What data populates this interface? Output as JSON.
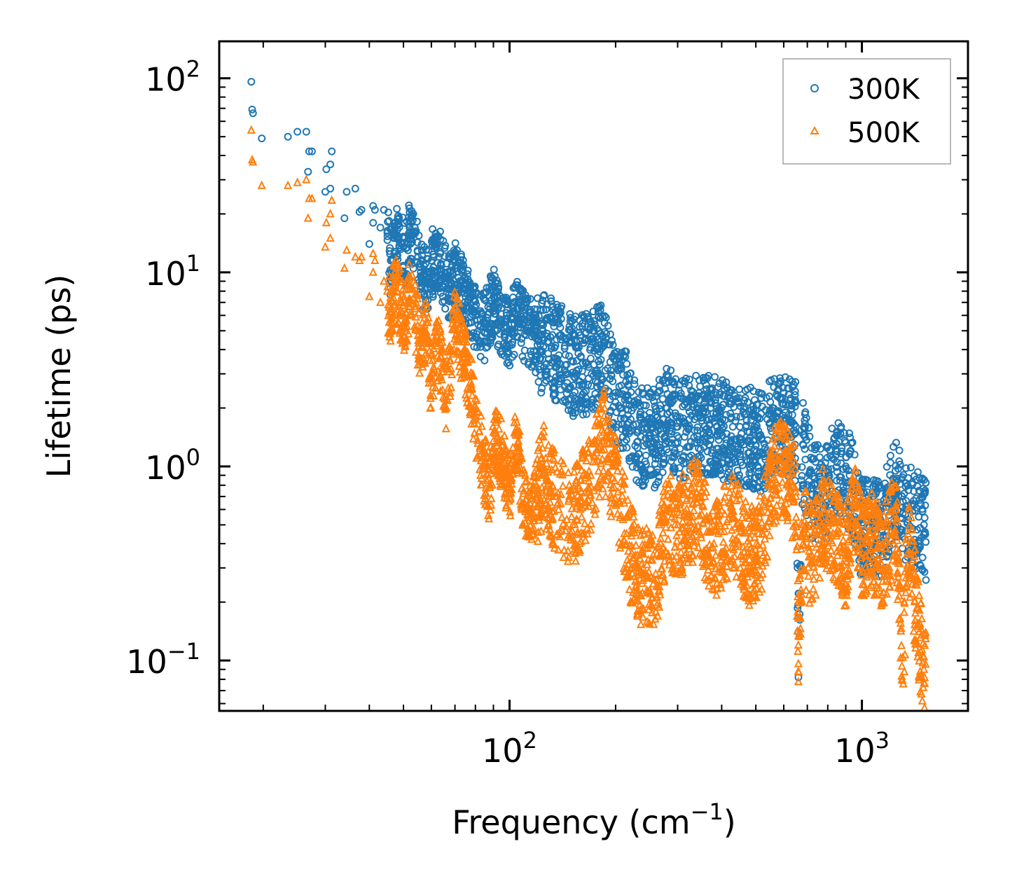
{
  "chart_data": {
    "type": "scatter",
    "title": "",
    "xlabel": "Frequency (cm",
    "xlabel_sup": "−1",
    "xlabel_close": ")",
    "ylabel": "Lifetime (ps)",
    "xscale": "log",
    "yscale": "log",
    "xlim": [
      15,
      2000
    ],
    "ylim": [
      0.055,
      155
    ],
    "x_ticks": [
      {
        "value": 100,
        "base": "10",
        "exp": "2"
      },
      {
        "value": 1000,
        "base": "10",
        "exp": "3"
      }
    ],
    "y_ticks": [
      {
        "value": 0.1,
        "base": "10",
        "exp": "−1"
      },
      {
        "value": 1,
        "base": "10",
        "exp": "0"
      },
      {
        "value": 10,
        "base": "10",
        "exp": "1"
      },
      {
        "value": 100,
        "base": "10",
        "exp": "2"
      }
    ],
    "legend_position": "top-right",
    "series": [
      {
        "name": "300K",
        "marker": "circle",
        "color": "#1f77b4",
        "points": [
          [
            18.5,
            96
          ],
          [
            18.6,
            69
          ],
          [
            18.7,
            66
          ],
          [
            19.8,
            49
          ],
          [
            23.5,
            50
          ],
          [
            25,
            53
          ],
          [
            26.5,
            53
          ],
          [
            27,
            42
          ],
          [
            27.5,
            42
          ],
          [
            26.8,
            33
          ],
          [
            30,
            26
          ],
          [
            30.2,
            34
          ],
          [
            31,
            36
          ],
          [
            31.3,
            42
          ],
          [
            31,
            27
          ],
          [
            34,
            19
          ],
          [
            34.5,
            26
          ],
          [
            36.5,
            27
          ],
          [
            37.5,
            20.5
          ],
          [
            38,
            21
          ],
          [
            40,
            14
          ],
          [
            41,
            22
          ],
          [
            41.5,
            21
          ],
          [
            41,
            18
          ],
          [
            44,
            21
          ],
          [
            43,
            17
          ],
          [
            45,
            16
          ],
          [
            46,
            11.5
          ],
          [
            47,
            15
          ],
          [
            48,
            15
          ],
          [
            50,
            13.5
          ],
          [
            51.5,
            13
          ],
          [
            52,
            17
          ],
          [
            54,
            16
          ],
          [
            55,
            12
          ],
          [
            56,
            10
          ],
          [
            58,
            9.5
          ],
          [
            60,
            11.5
          ],
          [
            63,
            12
          ],
          [
            66,
            9.5
          ],
          [
            68,
            8.5
          ],
          [
            70,
            10.5
          ],
          [
            75,
            7.5
          ],
          [
            78,
            6.5
          ],
          [
            80,
            6
          ],
          [
            85,
            5.5
          ],
          [
            88,
            6.5
          ],
          [
            90,
            7.5
          ],
          [
            95,
            5.5
          ],
          [
            100,
            5.0
          ],
          [
            105,
            6.5
          ],
          [
            110,
            5.5
          ],
          [
            115,
            5.0
          ],
          [
            125,
            4.5
          ],
          [
            135,
            4.2
          ],
          [
            150,
            3.5
          ],
          [
            170,
            3.6
          ],
          [
            185,
            4.3
          ],
          [
            190,
            3.2
          ],
          [
            200,
            2.4
          ],
          [
            215,
            2.3
          ],
          [
            230,
            1.5
          ],
          [
            260,
            1.5
          ],
          [
            280,
            2.0
          ],
          [
            300,
            1.6
          ],
          [
            340,
            1.8
          ],
          [
            380,
            1.7
          ],
          [
            430,
            1.6
          ],
          [
            480,
            1.5
          ],
          [
            520,
            1.4
          ],
          [
            570,
            1.8
          ],
          [
            610,
            1.75
          ],
          [
            650,
            1.6
          ],
          [
            660,
            0.14
          ],
          [
            680,
            1.3
          ],
          [
            720,
            0.8
          ],
          [
            780,
            0.75
          ],
          [
            850,
            1.05
          ],
          [
            900,
            1.0
          ],
          [
            950,
            0.75
          ],
          [
            1000,
            0.5
          ],
          [
            1050,
            0.55
          ],
          [
            1150,
            0.5
          ],
          [
            1250,
            0.85
          ],
          [
            1300,
            0.7
          ],
          [
            1350,
            0.6
          ],
          [
            1450,
            0.55
          ],
          [
            1500,
            0.5
          ]
        ]
      },
      {
        "name": "500K",
        "marker": "triangle",
        "color": "#ff7f0e",
        "points": [
          [
            18.5,
            54
          ],
          [
            18.6,
            38
          ],
          [
            18.7,
            37
          ],
          [
            19.8,
            28
          ],
          [
            23.5,
            28
          ],
          [
            25,
            29
          ],
          [
            26.5,
            30
          ],
          [
            27,
            24
          ],
          [
            27.5,
            24
          ],
          [
            26.8,
            19
          ],
          [
            30,
            13.5
          ],
          [
            30.2,
            18
          ],
          [
            31,
            20
          ],
          [
            31.3,
            23.5
          ],
          [
            31,
            15
          ],
          [
            34,
            10.5
          ],
          [
            34.5,
            13
          ],
          [
            36.5,
            12
          ],
          [
            37.5,
            11.5
          ],
          [
            38,
            12
          ],
          [
            40,
            7.5
          ],
          [
            41,
            12.5
          ],
          [
            41.5,
            11.5
          ],
          [
            41,
            10
          ],
          [
            44,
            9
          ],
          [
            43,
            7
          ],
          [
            45,
            8
          ],
          [
            46,
            6.5
          ],
          [
            47,
            8
          ],
          [
            48,
            8
          ],
          [
            50,
            6
          ],
          [
            51.5,
            7
          ],
          [
            52,
            8.5
          ],
          [
            54,
            6.5
          ],
          [
            55,
            5
          ],
          [
            56,
            4.5
          ],
          [
            58,
            5.5
          ],
          [
            60,
            2.7
          ],
          [
            63,
            4.5
          ],
          [
            66,
            2.3
          ],
          [
            68,
            3.5
          ],
          [
            70,
            6
          ],
          [
            75,
            3.5
          ],
          [
            78,
            2.5
          ],
          [
            80,
            1.8
          ],
          [
            85,
            1.0
          ],
          [
            88,
            0.8
          ],
          [
            90,
            1.5
          ],
          [
            95,
            1.2
          ],
          [
            100,
            0.75
          ],
          [
            105,
            1.5
          ],
          [
            110,
            0.65
          ],
          [
            115,
            0.6
          ],
          [
            125,
            0.95
          ],
          [
            135,
            0.7
          ],
          [
            150,
            0.55
          ],
          [
            170,
            0.9
          ],
          [
            185,
            1.5
          ],
          [
            190,
            1.1
          ],
          [
            200,
            1.0
          ],
          [
            215,
            0.45
          ],
          [
            230,
            0.3
          ],
          [
            260,
            0.28
          ],
          [
            280,
            0.6
          ],
          [
            300,
            0.5
          ],
          [
            340,
            0.65
          ],
          [
            380,
            0.4
          ],
          [
            430,
            0.55
          ],
          [
            480,
            0.35
          ],
          [
            520,
            0.45
          ],
          [
            570,
            1.0
          ],
          [
            610,
            1.05
          ],
          [
            650,
            0.7
          ],
          [
            660,
            0.12
          ],
          [
            680,
            0.5
          ],
          [
            720,
            0.35
          ],
          [
            780,
            0.6
          ],
          [
            850,
            0.45
          ],
          [
            900,
            0.35
          ],
          [
            950,
            0.65
          ],
          [
            1000,
            0.4
          ],
          [
            1050,
            0.45
          ],
          [
            1150,
            0.35
          ],
          [
            1250,
            0.6
          ],
          [
            1300,
            0.08
          ],
          [
            1350,
            0.45
          ],
          [
            1450,
            0.15
          ],
          [
            1500,
            0.09
          ]
        ]
      }
    ]
  }
}
